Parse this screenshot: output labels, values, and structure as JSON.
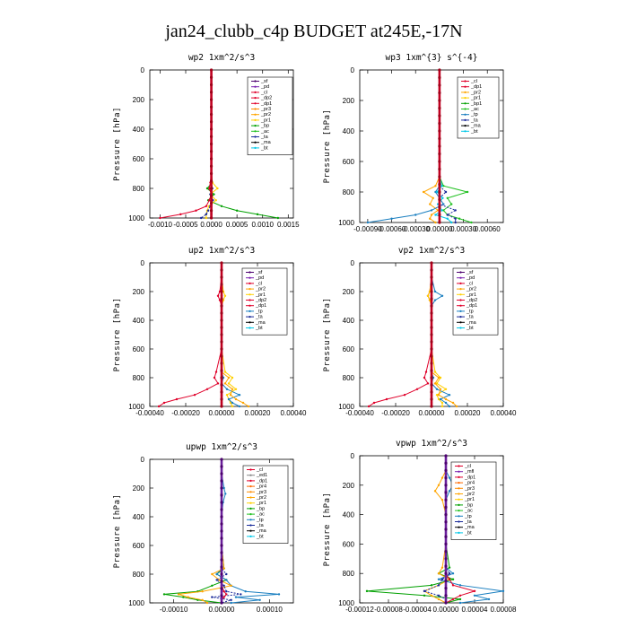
{
  "figure": {
    "title": "jan24_clubb_c4p  BUDGET at245E,-17N"
  },
  "colors": {
    "sf": "#4b006e",
    "pd": "#7a1fb0",
    "cl": "#e0002a",
    "mfl": "#7a1fb0",
    "dp1": "#e0002a",
    "dp2": "#e0002a",
    "pr1": "#ffd000",
    "pr2": "#ffa500",
    "pr3": "#ff8c00",
    "pr4": "#ff6a00",
    "bp": "#00a000",
    "ac": "#20c020",
    "tp": "#1a7fc0",
    "ta": "#1a2a9a",
    "ma": "#000000",
    "bt": "#00c8e8"
  },
  "chart_data": [
    {
      "type": "line",
      "title": "wp2  1xm^2/s^3",
      "ylabel": "Pressure [hPa]",
      "ylim": [
        1000,
        0
      ],
      "xlim": [
        -0.0012,
        0.0016
      ],
      "xticks": [
        "-0.0010",
        "-0.0005",
        "0.0000",
        "0.0005",
        "0.0010",
        "0.0015"
      ],
      "xtick_values": [
        -0.001,
        -0.0005,
        0,
        0.0005,
        0.001,
        0.0015
      ],
      "yticks": [
        0,
        200,
        400,
        600,
        800,
        1000
      ],
      "legend": [
        "_sf",
        "_pd",
        "_cl",
        "_dp2",
        "_dp1",
        "_pr3",
        "_pr2",
        "_pr1",
        "_bp",
        "_ac",
        "_ta",
        "_ma",
        "_bt"
      ],
      "levels": [
        0,
        100,
        200,
        300,
        400,
        500,
        600,
        700,
        760,
        800,
        840,
        880,
        920,
        950,
        975,
        1000
      ],
      "series": [
        {
          "name": "_bp",
          "values": [
            0,
            0,
            0,
            0,
            0,
            0,
            0,
            0,
            2e-05,
            -8e-05,
            5e-05,
            -6e-05,
            0.0002,
            0.0005,
            0.0009,
            0.0013
          ]
        },
        {
          "name": "_pr1",
          "values": [
            0,
            0,
            0,
            0,
            0,
            0,
            0,
            0,
            2e-05,
            0.00012,
            -2e-05,
            9e-05,
            -5e-05,
            -8e-05,
            -0.0001,
            -0.0001
          ]
        },
        {
          "name": "_dp1",
          "values": [
            0,
            0,
            0,
            0,
            0,
            0,
            0,
            0,
            -2e-05,
            -4e-05,
            0,
            -4e-05,
            -0.0001,
            -0.0003,
            -0.0006,
            -0.001
          ]
        },
        {
          "name": "_ta",
          "values": [
            0,
            0,
            0,
            0,
            0,
            0,
            0,
            0,
            0,
            2e-05,
            -2e-05,
            3e-05,
            -2e-05,
            -6e-05,
            -0.0001,
            -0.0002
          ]
        },
        {
          "name": "_sf",
          "values": [
            0,
            0,
            0,
            0,
            0,
            0,
            0,
            0,
            0,
            0,
            0,
            0,
            0,
            0,
            0,
            0
          ]
        }
      ]
    },
    {
      "type": "line",
      "title": "wp3  1xm^{3} s^{-4}",
      "ylabel": "Pressure [hPa]",
      "ylim": [
        1000,
        0
      ],
      "xlim": [
        -0.001,
        0.0008
      ],
      "xticks": [
        "-0.00090",
        "-0.00060",
        "-0.00030",
        "0.00000",
        "0.00030",
        "0.00060"
      ],
      "xtick_values": [
        -0.0009,
        -0.0006,
        -0.0003,
        0,
        0.0003,
        0.0006
      ],
      "yticks": [
        0,
        200,
        400,
        600,
        800,
        1000
      ],
      "legend": [
        "_cl",
        "_dp1",
        "_pr2",
        "_pr1",
        "_bp1",
        "_ac",
        "_tp",
        "_ta",
        "_ma",
        "_bt"
      ],
      "levels": [
        0,
        100,
        200,
        300,
        400,
        500,
        600,
        700,
        760,
        800,
        840,
        880,
        920,
        950,
        975,
        1000
      ],
      "series": [
        {
          "name": "_ac",
          "values": [
            0,
            0,
            0,
            0,
            0,
            0,
            0,
            0,
            5e-05,
            0.00035,
            0.0001,
            0.00015,
            5e-05,
            0.0001,
            0.00025,
            0.0004
          ]
        },
        {
          "name": "_pr2",
          "values": [
            0,
            0,
            0,
            0,
            0,
            0,
            0,
            0,
            -5e-05,
            -0.0002,
            -8e-05,
            -0.00012,
            -2e-05,
            -0.0001,
            -0.00012,
            -5e-05
          ]
        },
        {
          "name": "_tp",
          "values": [
            0,
            0,
            0,
            0,
            0,
            0,
            0,
            0,
            0,
            -5e-05,
            0,
            5e-05,
            -0.0001,
            -0.0003,
            -0.0006,
            -0.0009
          ]
        },
        {
          "name": "_ta",
          "values": [
            0,
            0,
            0,
            0,
            0,
            0,
            0,
            0,
            0,
            8e-05,
            0,
            0,
            0.0002,
            0.0001,
            0.0002,
            0.0002
          ]
        },
        {
          "name": "_bt",
          "values": [
            0,
            0,
            0,
            0,
            0,
            0,
            0,
            0,
            3e-05,
            -3e-05,
            4e-05,
            -2e-05,
            3e-05,
            -5e-05,
            0.0001,
            0.00015
          ]
        },
        {
          "name": "_cl",
          "values": [
            0,
            0,
            0,
            0,
            0,
            0,
            0,
            0,
            0,
            0,
            0,
            0,
            0,
            0,
            0,
            0
          ]
        }
      ]
    },
    {
      "type": "line",
      "title": "up2  1xm^2/s^3",
      "ylabel": "Pressure [hPa]",
      "ylim": [
        1000,
        0
      ],
      "xlim": [
        -0.0004,
        0.0004
      ],
      "xticks": [
        "-0.00040",
        "-0.00020",
        "0.00000",
        "0.00020",
        "0.00040"
      ],
      "xtick_values": [
        -0.0004,
        -0.0002,
        0,
        0.0002,
        0.0004
      ],
      "yticks": [
        0,
        200,
        400,
        600,
        800,
        1000
      ],
      "legend": [
        "_sf",
        "_pd",
        "_cl",
        "_pr2",
        "_pr1",
        "_dp2",
        "_dp1",
        "_tp",
        "_ta",
        "_ma",
        "_bt"
      ],
      "levels": [
        0,
        100,
        200,
        230,
        260,
        300,
        400,
        600,
        760,
        800,
        840,
        880,
        920,
        950,
        975,
        1000
      ],
      "series": [
        {
          "name": "_dp1",
          "values": [
            0,
            0,
            -1e-05,
            -2e-05,
            -1e-05,
            0,
            0,
            0,
            -3e-05,
            -4e-05,
            -2e-05,
            -8e-05,
            -0.00015,
            -0.00025,
            -0.00032,
            -0.00035
          ]
        },
        {
          "name": "_pr1",
          "values": [
            0,
            0,
            1e-05,
            2e-05,
            1e-05,
            0,
            0,
            0,
            2e-05,
            6e-05,
            4e-05,
            8e-05,
            3e-05,
            4e-05,
            5e-05,
            6e-05
          ]
        },
        {
          "name": "_tp",
          "values": [
            0,
            0,
            0,
            0,
            0,
            0,
            0,
            0,
            0,
            1e-05,
            0,
            3e-05,
            0.0001,
            4e-05,
            6e-05,
            0.0001
          ]
        },
        {
          "name": "_pr2",
          "values": [
            0,
            0,
            0,
            0,
            0,
            0,
            0,
            0,
            0,
            4e-05,
            2e-05,
            6e-05,
            5e-05,
            8e-05,
            0.00012,
            0.00015
          ]
        },
        {
          "name": "_sf",
          "values": [
            0,
            0,
            0,
            0,
            0,
            0,
            0,
            0,
            0,
            0,
            0,
            0,
            0,
            0,
            0,
            0
          ]
        }
      ]
    },
    {
      "type": "line",
      "title": "vp2  1xm^2/s^3",
      "ylabel": "Pressure [hPa]",
      "ylim": [
        1000,
        0
      ],
      "xlim": [
        -0.0004,
        0.0004
      ],
      "xticks": [
        "-0.00040",
        "-0.00020",
        "0.00000",
        "0.00020",
        "0.00040"
      ],
      "xtick_values": [
        -0.0004,
        -0.0002,
        0,
        0.0002,
        0.0004
      ],
      "yticks": [
        0,
        200,
        400,
        600,
        800,
        1000
      ],
      "legend": [
        "_sf",
        "_pd",
        "_cl",
        "_pr2",
        "_pr1",
        "_dp2",
        "_dp1",
        "_tp",
        "_ta",
        "_ma",
        "_bt"
      ],
      "levels": [
        0,
        100,
        200,
        230,
        260,
        300,
        400,
        600,
        760,
        800,
        840,
        880,
        920,
        950,
        975,
        1000
      ],
      "series": [
        {
          "name": "_dp1",
          "values": [
            0,
            0,
            -1e-05,
            -2e-05,
            -1e-05,
            0,
            0,
            0,
            -3e-05,
            -4e-05,
            -2e-05,
            -8e-05,
            -0.00015,
            -0.00025,
            -0.00032,
            -0.00035
          ]
        },
        {
          "name": "_pr1",
          "values": [
            0,
            0,
            -1e-05,
            -2e-05,
            -1e-05,
            0,
            0,
            0,
            2e-05,
            5e-05,
            3e-05,
            8e-05,
            3e-05,
            4e-05,
            6e-05,
            6e-05
          ]
        },
        {
          "name": "_tp",
          "values": [
            0,
            0,
            2e-05,
            6e-05,
            2e-05,
            0,
            0,
            0,
            0,
            1e-05,
            0,
            3e-05,
            0.0001,
            5e-05,
            8e-05,
            0.0001
          ]
        },
        {
          "name": "_pr2",
          "values": [
            0,
            0,
            0,
            0,
            0,
            0,
            0,
            0,
            0,
            4e-05,
            2e-05,
            5e-05,
            4e-05,
            8e-05,
            0.00012,
            0.00014
          ]
        },
        {
          "name": "_sf",
          "values": [
            0,
            0,
            0,
            0,
            0,
            0,
            0,
            0,
            0,
            0,
            0,
            0,
            0,
            0,
            0,
            0
          ]
        }
      ]
    },
    {
      "type": "line",
      "title": "upwp  1xm^2/s^3",
      "ylabel": "Pressure [hPa]",
      "ylim": [
        1000,
        0
      ],
      "xlim": [
        -0.00015,
        0.00015
      ],
      "xticks": [
        "-0.00010",
        "0.00000",
        "0.00010"
      ],
      "xtick_values": [
        -0.0001,
        0,
        0.0001
      ],
      "yticks": [
        0,
        200,
        400,
        600,
        800,
        1000
      ],
      "legend": [
        "_cl",
        "_ed1",
        "_dp1",
        "_pr4",
        "_pr3",
        "_pr2",
        "_pr1",
        "_bp",
        "_ac",
        "_tp",
        "_ta",
        "_ma",
        "_bt"
      ],
      "levels": [
        0,
        100,
        200,
        240,
        300,
        400,
        600,
        760,
        800,
        840,
        880,
        920,
        940,
        960,
        980,
        1000
      ],
      "series": [
        {
          "name": "_bp",
          "values": [
            0,
            0,
            0,
            0,
            0,
            0,
            0,
            5e-06,
            -1e-05,
            1e-05,
            -2e-05,
            -5e-05,
            -0.00012,
            -8e-05,
            -5e-05,
            0
          ]
        },
        {
          "name": "_tp",
          "values": [
            0,
            0,
            5e-06,
            8e-06,
            3e-06,
            0,
            0,
            0,
            -1e-05,
            1e-05,
            2e-05,
            5e-05,
            0.00012,
            3e-05,
            8e-05,
            2e-05
          ]
        },
        {
          "name": "_pr2",
          "values": [
            0,
            0,
            0,
            0,
            0,
            0,
            0,
            5e-06,
            -2e-05,
            -5e-06,
            2e-05,
            -4e-05,
            -9e-05,
            -7e-05,
            -4e-05,
            -3e-05
          ]
        },
        {
          "name": "_ta",
          "values": [
            0,
            0,
            0,
            0,
            0,
            0,
            0,
            0,
            1e-05,
            -1e-05,
            5e-06,
            1e-05,
            4e-05,
            -2e-05,
            2e-05,
            0
          ]
        },
        {
          "name": "_dp1",
          "values": [
            0,
            0,
            0,
            0,
            0,
            0,
            0,
            0,
            0,
            0,
            0,
            5e-06,
            1e-05,
            5e-06,
            0,
            0
          ]
        },
        {
          "name": "_cl",
          "values": [
            0,
            0,
            0,
            0,
            0,
            0,
            0,
            0,
            0,
            0,
            0,
            0,
            0,
            0,
            0,
            0
          ]
        }
      ]
    },
    {
      "type": "line",
      "title": "vpwp  1xm^2/s^3",
      "ylabel": "Pressure [hPa]",
      "ylim": [
        1000,
        0
      ],
      "xlim": [
        -0.00012,
        8e-05
      ],
      "xticks": [
        "-0.00012",
        "-0.00008",
        "-0.00004",
        "0.00000",
        "0.00004",
        "0.00008"
      ],
      "xtick_values": [
        -0.00012,
        -8e-05,
        -4e-05,
        0,
        4e-05,
        8e-05
      ],
      "yticks": [
        0,
        200,
        400,
        600,
        800,
        1000
      ],
      "legend": [
        "_cl",
        "_mfl",
        "_dp1",
        "_pr4",
        "_pr3",
        "_pr2",
        "_pr1",
        "_bp",
        "_ac",
        "_tp",
        "_ta",
        "_ma",
        "_bt"
      ],
      "levels": [
        0,
        100,
        150,
        200,
        240,
        300,
        400,
        600,
        760,
        800,
        840,
        880,
        920,
        950,
        975,
        1000
      ],
      "series": [
        {
          "name": "_bp",
          "values": [
            0,
            0,
            0,
            0,
            0,
            0,
            0,
            0,
            5e-06,
            -1e-05,
            1e-05,
            -2e-05,
            -0.00011,
            -3e-05,
            2e-05,
            0
          ]
        },
        {
          "name": "_tp",
          "values": [
            0,
            0,
            5e-06,
            1e-05,
            5e-06,
            0,
            0,
            0,
            0,
            1e-05,
            -1e-05,
            2e-05,
            8e-05,
            4e-05,
            6e-05,
            2e-05
          ]
        },
        {
          "name": "_pr2",
          "values": [
            0,
            0,
            -5e-06,
            -1e-05,
            -1.5e-05,
            -5e-06,
            0,
            0,
            -5e-06,
            -1e-05,
            5e-06,
            -1e-05,
            -3e-05,
            -2e-05,
            -1e-05,
            0
          ]
        },
        {
          "name": "_dp1",
          "values": [
            0,
            0,
            0,
            0,
            0,
            0,
            0,
            0,
            0,
            0,
            5e-06,
            1e-05,
            4e-05,
            2e-05,
            1e-05,
            0
          ]
        },
        {
          "name": "_ta",
          "values": [
            0,
            0,
            0,
            0,
            0,
            0,
            0,
            0,
            0,
            5e-06,
            -5e-06,
            -1e-05,
            -3e-05,
            -1e-05,
            0,
            0
          ]
        },
        {
          "name": "_cl",
          "values": [
            0,
            0,
            0,
            0,
            0,
            0,
            0,
            0,
            0,
            0,
            0,
            0,
            0,
            0,
            0,
            0
          ]
        }
      ]
    }
  ]
}
